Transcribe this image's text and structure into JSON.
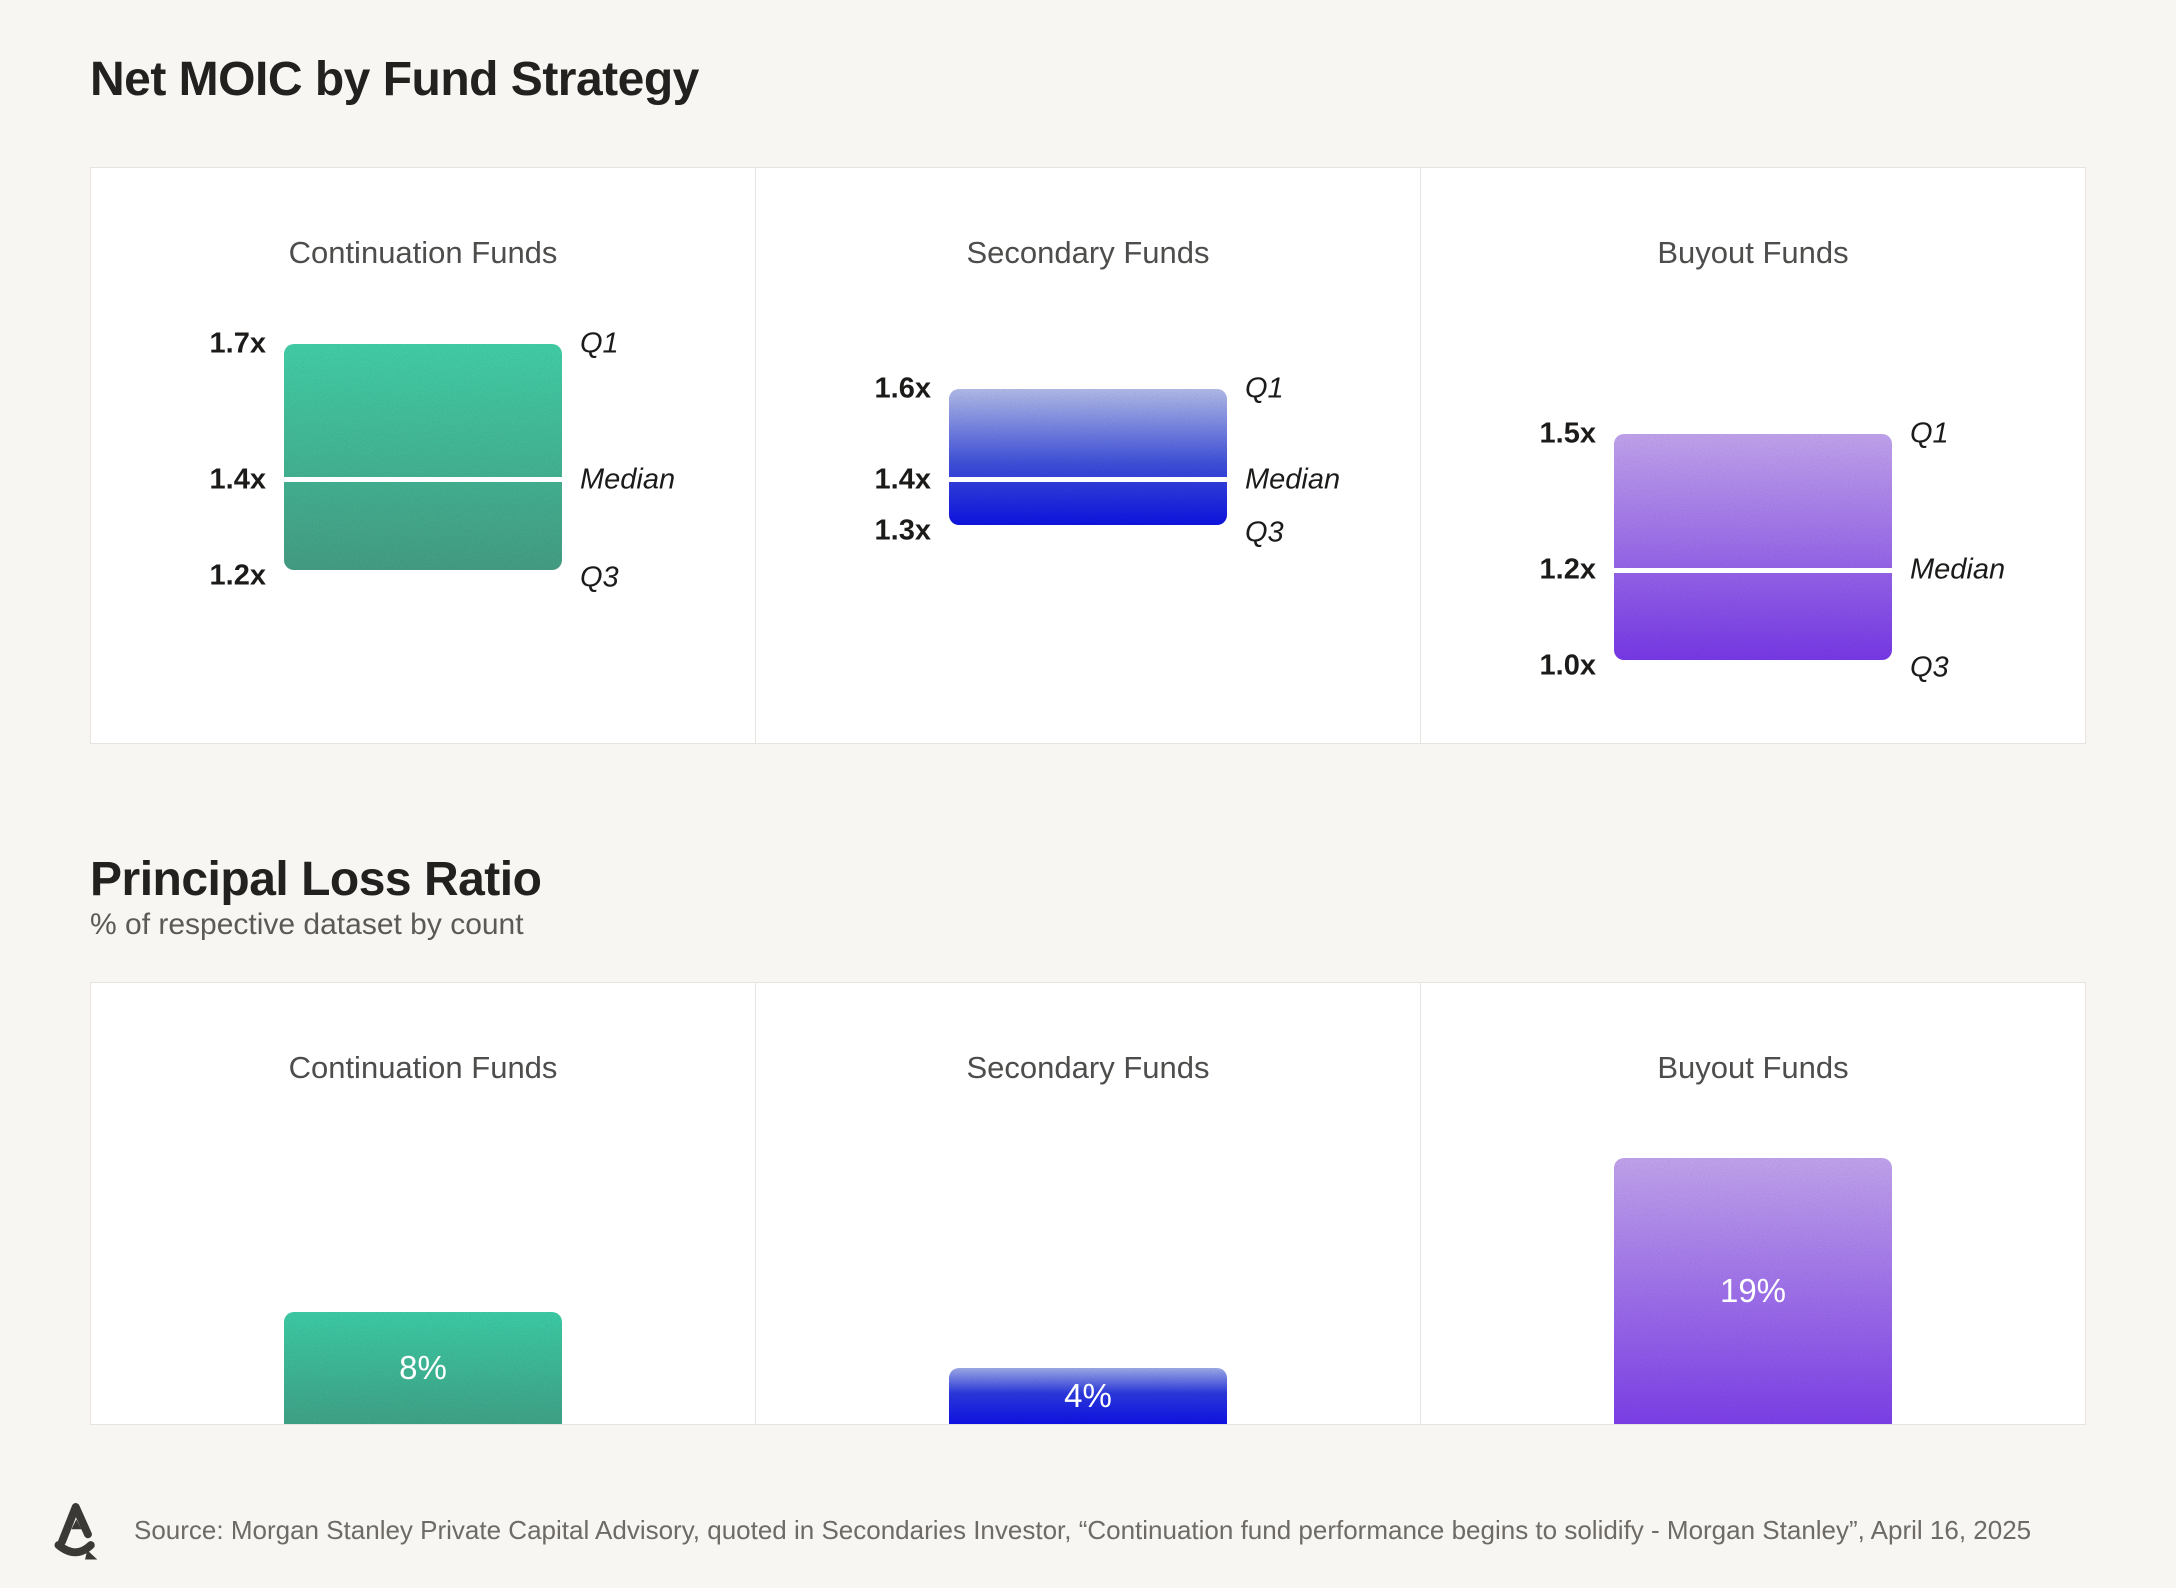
{
  "footer": {
    "source": "Source: Morgan Stanley Private Capital Advisory, quoted in Secondaries Investor, “Continuation fund performance begins to solidify - Morgan Stanley”, April 16, 2025",
    "logo_icon": "brand-a-mark-icon"
  },
  "chart_data": [
    {
      "type": "quartile-range",
      "title": "Net MOIC by Fund Strategy",
      "unit_suffix": "x",
      "ylim": [
        1.0,
        1.7
      ],
      "markers": {
        "q1": "Q1",
        "median": "Median",
        "q3": "Q3"
      },
      "panels": [
        {
          "category": "Continuation Funds",
          "q1": 1.7,
          "median": 1.4,
          "q3": 1.2,
          "q1_label": "1.7x",
          "median_label": "1.4x",
          "q3_label": "1.2x",
          "gradient": [
            "#45d7ae 0%",
            "#47a489 100%"
          ]
        },
        {
          "category": "Secondary Funds",
          "q1": 1.6,
          "median": 1.4,
          "q3": 1.3,
          "q1_label": "1.6x",
          "median_label": "1.4x",
          "q3_label": "1.3x",
          "gradient": [
            "#b9c3f3 0%",
            "#4153e2 55%",
            "#0f14ea 100%"
          ]
        },
        {
          "category": "Buyout Funds",
          "q1": 1.5,
          "median": 1.2,
          "q3": 1.0,
          "q1_label": "1.5x",
          "median_label": "1.2x",
          "q3_label": "1.0x",
          "gradient": [
            "#c9aaf7 0%",
            "#7c3bf0 100%"
          ]
        }
      ],
      "layout": {
        "small_multiples": 3,
        "grid": false,
        "legend": "none",
        "median_line_color": "#ffffff"
      }
    },
    {
      "type": "bar",
      "title": "Principal Loss Ratio",
      "subtitle": "% of respective dataset by count",
      "categories": [
        "Continuation Funds",
        "Secondary Funds",
        "Buyout Funds"
      ],
      "values": [
        8,
        4,
        19
      ],
      "value_labels": [
        "8%",
        "4%",
        "19%"
      ],
      "ylim": [
        0,
        32
      ],
      "gradients": [
        [
          "#3fd4ac 0%",
          "#42a98d 100%"
        ],
        [
          "#a4b2f1 0%",
          "#2d3be6 45%",
          "#1013ee 100%"
        ],
        [
          "#c9aaf7 0%",
          "#8242f2 100%"
        ]
      ],
      "layout": {
        "small_multiples": 3,
        "grid": false,
        "legend": "none",
        "baseline": "panel-bottom"
      }
    }
  ]
}
